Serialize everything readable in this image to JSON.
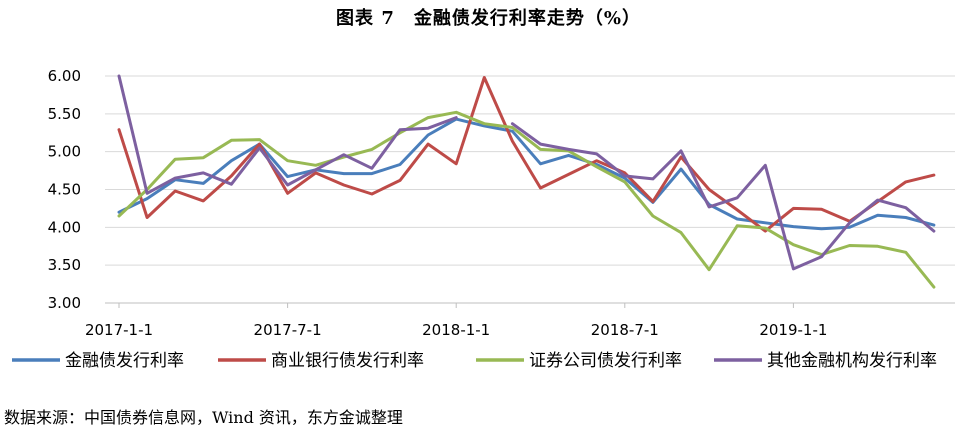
{
  "title": "图表 7　金融债发行利率走势（%）",
  "source": "数据来源：中国债券信息网，Wind 资讯，东方金诚整理",
  "chart_data": {
    "type": "line",
    "title": "图表 7　金融债发行利率走势（%）",
    "ylim": [
      3.0,
      6.0
    ],
    "y_ticks": [
      "3.00",
      "3.50",
      "4.00",
      "4.50",
      "5.00",
      "5.50",
      "6.00"
    ],
    "x_tick_labels": [
      "2017-1-1",
      "2017-7-1",
      "2018-1-1",
      "2018-7-1",
      "2019-1-1"
    ],
    "x_tick_months": [
      0,
      6,
      12,
      18,
      24
    ],
    "x_months": [
      0,
      1,
      2,
      3,
      4,
      5,
      6,
      7,
      8,
      9,
      10,
      11,
      12,
      13,
      14,
      15,
      16,
      17,
      18,
      19,
      20,
      21,
      22,
      23,
      24,
      25,
      26,
      27,
      28,
      29
    ],
    "grid": "horizontal",
    "legend_position": "bottom",
    "series": [
      {
        "name": "金融债发行利率",
        "color": "#4A7EBB",
        "values": [
          4.2,
          4.38,
          4.63,
          4.58,
          4.88,
          5.1,
          4.67,
          4.76,
          4.71,
          4.71,
          4.83,
          5.22,
          5.43,
          5.34,
          5.27,
          4.84,
          4.95,
          4.83,
          4.65,
          4.33,
          4.77,
          4.3,
          4.11,
          4.06,
          4.01,
          3.98,
          4.0,
          4.16,
          4.13,
          4.03
        ]
      },
      {
        "name": "商业银行债发行利率",
        "color": "#BE4B48",
        "values": [
          5.29,
          4.13,
          4.48,
          4.35,
          4.68,
          5.1,
          4.45,
          4.72,
          4.56,
          4.44,
          4.62,
          5.1,
          4.84,
          5.98,
          5.14,
          4.52,
          4.7,
          4.88,
          4.72,
          4.34,
          4.93,
          4.5,
          4.23,
          3.95,
          4.25,
          4.24,
          4.08,
          4.34,
          4.6,
          4.69
        ]
      },
      {
        "name": "证券公司债发行利率",
        "color": "#98B954",
        "values": [
          4.15,
          4.5,
          4.9,
          4.92,
          5.15,
          5.16,
          4.88,
          4.82,
          4.93,
          5.03,
          5.25,
          5.45,
          5.52,
          5.37,
          5.32,
          5.03,
          5.01,
          4.8,
          4.6,
          4.15,
          3.93,
          3.44,
          4.02,
          3.99,
          3.77,
          3.64,
          3.76,
          3.75,
          3.67,
          3.21
        ]
      },
      {
        "name": "其他金融机构发行利率",
        "color": "#7D60A0",
        "values": [
          6.0,
          4.45,
          4.65,
          4.72,
          4.57,
          5.05,
          4.56,
          4.76,
          4.96,
          4.78,
          5.29,
          5.31,
          5.45,
          null,
          5.37,
          5.1,
          5.03,
          4.97,
          4.68,
          4.64,
          5.01,
          4.27,
          4.39,
          4.82,
          3.45,
          3.61,
          4.06,
          4.36,
          4.26,
          3.95
        ]
      }
    ]
  }
}
